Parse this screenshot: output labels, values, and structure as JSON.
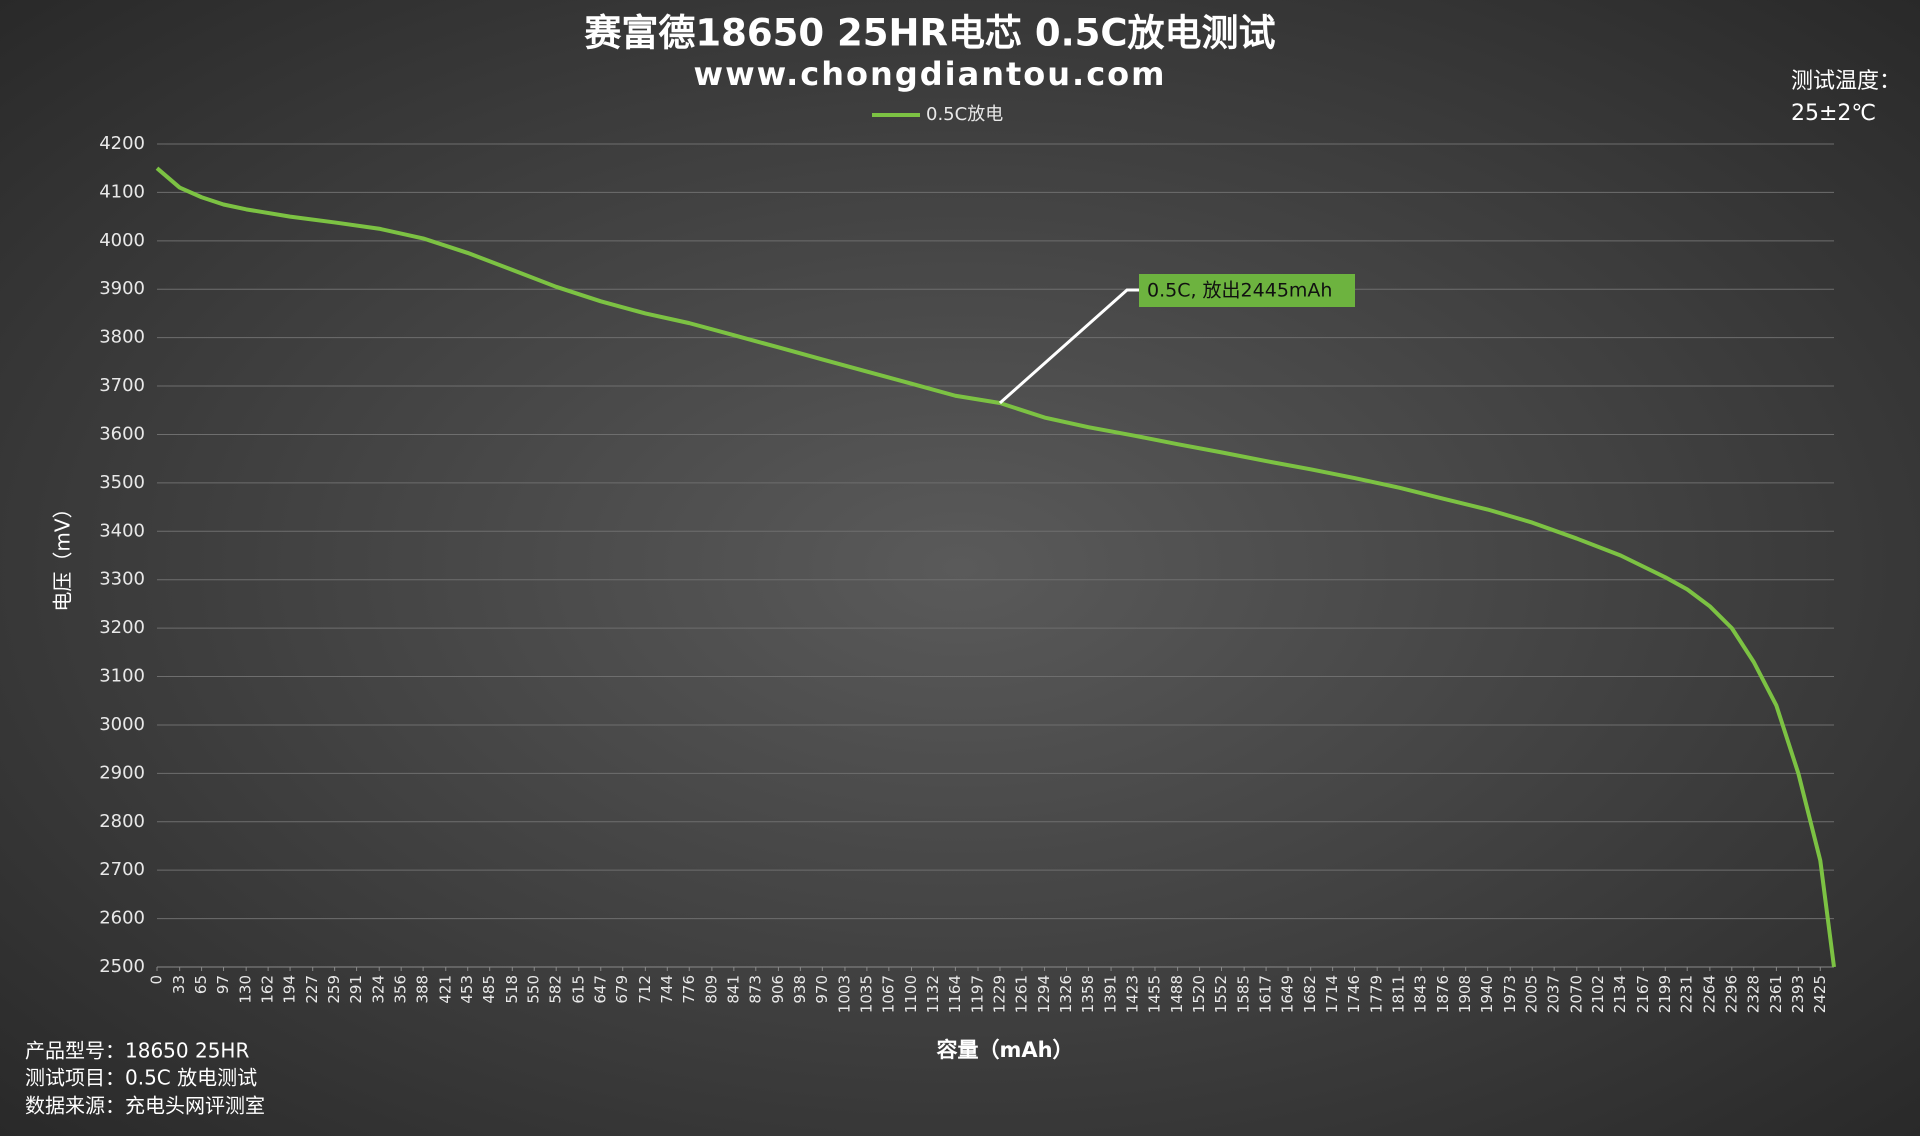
{
  "chart_data": {
    "type": "line",
    "title": "赛富德18650 25HR电芯  0.5C放电测试",
    "subtitle": "www.chongdiantou.com",
    "side_note": [
      "测试温度：",
      "25±2℃"
    ],
    "x_label": "容量（mAh）",
    "y_label": "电压（mV）",
    "notes": [
      "产品型号：18650 25HR",
      "测试项目：0.5C 放电测试",
      "数据来源：充电头网评测室"
    ],
    "grid": true,
    "legend": "top",
    "xlim": [
      0,
      2445
    ],
    "ylim": [
      2500,
      4200
    ],
    "yticks": [
      2500,
      2600,
      2700,
      2800,
      2900,
      3000,
      3100,
      3200,
      3300,
      3400,
      3500,
      3600,
      3700,
      3800,
      3900,
      4000,
      4100,
      4200
    ],
    "xticks": [
      0,
      33,
      65,
      97,
      130,
      162,
      194,
      227,
      259,
      291,
      324,
      356,
      388,
      421,
      453,
      485,
      518,
      550,
      582,
      615,
      647,
      679,
      712,
      744,
      776,
      809,
      841,
      873,
      906,
      938,
      970,
      1003,
      1035,
      1067,
      1100,
      1132,
      1164,
      1197,
      1229,
      1261,
      1294,
      1326,
      1358,
      1391,
      1423,
      1455,
      1488,
      1520,
      1552,
      1585,
      1617,
      1649,
      1682,
      1714,
      1746,
      1779,
      1811,
      1843,
      1876,
      1908,
      1940,
      1973,
      2005,
      2037,
      2070,
      2102,
      2134,
      2167,
      2199,
      2231,
      2264,
      2296,
      2328,
      2361,
      2393,
      2425
    ],
    "x": [
      0,
      33,
      65,
      97,
      130,
      194,
      259,
      324,
      388,
      453,
      518,
      582,
      647,
      712,
      776,
      841,
      906,
      970,
      1035,
      1100,
      1164,
      1229,
      1294,
      1358,
      1423,
      1488,
      1552,
      1617,
      1682,
      1746,
      1811,
      1876,
      1940,
      2005,
      2070,
      2134,
      2199,
      2231,
      2264,
      2296,
      2328,
      2361,
      2393,
      2425,
      2445
    ],
    "series": [
      {
        "name": "0.5C放电",
        "color": "#7cc243",
        "values": [
          4150,
          4110,
          4090,
          4075,
          4065,
          4050,
          4038,
          4025,
          4005,
          3975,
          3940,
          3905,
          3875,
          3850,
          3830,
          3805,
          3780,
          3755,
          3730,
          3705,
          3680,
          3665,
          3635,
          3615,
          3598,
          3580,
          3563,
          3545,
          3528,
          3510,
          3490,
          3467,
          3445,
          3418,
          3385,
          3350,
          3305,
          3280,
          3245,
          3200,
          3130,
          3040,
          2900,
          2720,
          2500
        ]
      }
    ],
    "annotation": {
      "text": "0.5C, 放出2445mAh",
      "x": 1229,
      "y": 3665
    }
  }
}
